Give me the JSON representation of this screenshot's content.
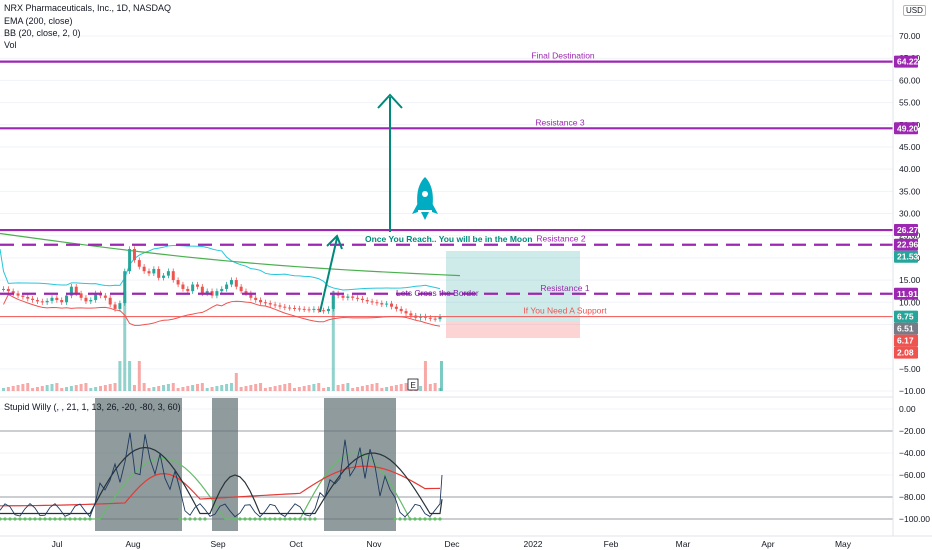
{
  "header": {
    "symbol": "NRX Pharmaceuticals, Inc., 1D, NASDAQ",
    "ema": "EMA (200, close)",
    "bb": "BB (20, close, 2, 0)",
    "vol": "Vol",
    "currency": "USD"
  },
  "colors": {
    "purple": "#9c27b0",
    "green": "#26a69a",
    "red": "#ef5350",
    "bb_upper": "#26c6da",
    "ema": "#4caf50",
    "gray_box": "#607174"
  },
  "chart_data": [
    {
      "type": "line",
      "title": "",
      "y_axis_ticks": [
        70,
        65,
        60,
        55,
        50,
        45,
        40,
        35,
        30,
        25,
        20,
        15,
        10,
        5,
        -5,
        -10
      ],
      "y_axis_tick_labels": [
        "70.00",
        "65.00",
        "60.00",
        "55.00",
        "50.00",
        "45.00",
        "40.00",
        "35.00",
        "30.00",
        "25.00",
        "20.00",
        "15.00",
        "10.00",
        "5.00",
        "−5.00",
        "−10.00"
      ],
      "x_labels": [
        "Jul",
        "Aug",
        "Sep",
        "Oct",
        "Nov",
        "Dec",
        "2022",
        "Feb",
        "Mar",
        "Apr",
        "May"
      ],
      "levels": [
        {
          "name": "Final Destination",
          "value": 64.22,
          "style": "solid"
        },
        {
          "name": "Resistance 3",
          "value": 49.2,
          "style": "solid"
        },
        {
          "name": "",
          "value": 26.27,
          "style": "solid"
        },
        {
          "name": "Resistance 2",
          "value": 22.96,
          "style": "dashed"
        },
        {
          "name": "Resistance 1",
          "value": 11.91,
          "style": "dashed"
        },
        {
          "name": "If You Need A Support",
          "value": 6.75,
          "style": "red-solid"
        }
      ],
      "annotations": [
        {
          "text": "Once You Reach.. You will be in the Moon"
        },
        {
          "text": "Lets Cross the Border"
        }
      ],
      "price_tags": [
        {
          "value": "64.22",
          "color": "#9c27b0"
        },
        {
          "value": "49.20",
          "color": "#9c27b0"
        },
        {
          "value": "26.27",
          "color": "#9c27b0"
        },
        {
          "value": "22.96",
          "color": "#9c27b0"
        },
        {
          "value": "21.53",
          "color": "#26a69a"
        },
        {
          "value": "11.91",
          "color": "#9c27b0"
        },
        {
          "value": "6.75",
          "color": "#26a69a"
        },
        {
          "value": "6.51",
          "color": "#787b86"
        },
        {
          "value": "6.17",
          "color": "#ef5350"
        },
        {
          "value": "2.08",
          "color": "#ef5350"
        }
      ],
      "price_series": [
        13.0,
        12.5,
        12.0,
        11.5,
        11.2,
        10.8,
        10.5,
        10.2,
        10.0,
        10.3,
        11.0,
        10.5,
        10.0,
        11.5,
        13.5,
        12.0,
        11.0,
        10.2,
        10.5,
        12.0,
        11.5,
        11.0,
        9.5,
        8.5,
        9.8,
        17.0,
        22.0,
        19.5,
        18.0,
        17.0,
        16.5,
        17.5,
        15.5,
        16.0,
        17.0,
        15.0,
        14.0,
        13.0,
        12.5,
        14.0,
        13.5,
        12.0,
        12.5,
        11.5,
        12.5,
        13.0,
        14.0,
        15.0,
        13.5,
        12.5,
        12.0,
        11.0,
        10.5,
        10.0,
        9.8,
        9.5,
        9.3,
        9.0,
        8.8,
        8.7,
        8.6,
        8.5,
        8.4,
        8.3,
        8.5,
        8.2,
        8.0,
        8.5,
        12.0,
        11.5,
        11.0,
        11.3,
        11.0,
        10.8,
        10.5,
        10.2,
        10.0,
        9.8,
        9.5,
        9.7,
        9.0,
        8.5,
        8.0,
        7.5,
        7.0,
        6.5,
        6.8,
        6.5,
        6.3,
        6.2,
        6.75
      ]
    },
    {
      "type": "line",
      "title": "Stupid Willy (, , 21, 1, 13, 26, -20, -80, 3, 60)",
      "y_axis_ticks": [
        0,
        -20,
        -40,
        -60,
        -80,
        -100
      ],
      "y_axis_tick_labels": [
        "0.00",
        "−20.00",
        "−40.00",
        "−60.00",
        "−80.00",
        "−100.00"
      ]
    }
  ]
}
